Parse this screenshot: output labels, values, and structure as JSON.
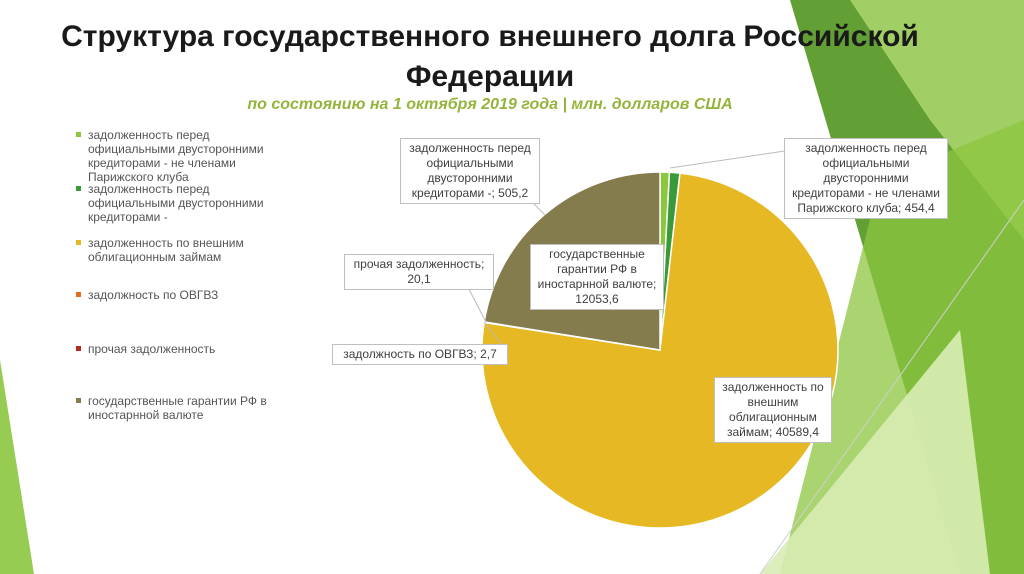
{
  "title": {
    "line1": "Структура государственного внешнего долга Российской",
    "line2": "Федерации",
    "subtitle": "по состоянию на 1 октября 2019 года | млн. долларов США"
  },
  "legend": {
    "items": [
      {
        "label": "задолженность перед официальными двусторонними кредиторами - не членами Парижского клуба",
        "color": "#8dc63f"
      },
      {
        "label": "задолженность перед официальными двусторонними кредиторами -",
        "color": "#3a9a3a"
      },
      {
        "label": "задолженность по внешним облигационным займам",
        "color": "#e6b824"
      },
      {
        "label": "задолжность по ОВГВЗ",
        "color": "#e06c1c"
      },
      {
        "label": "прочая задолженность",
        "color": "#b02d1f"
      },
      {
        "label": "государственные гарантии РФ в иностарнной валюте",
        "color": "#857c4e"
      }
    ]
  },
  "callouts": {
    "paris": "задолженность перед официальными двусторонними кредиторами -; 505,2",
    "nonparis": "задолженность перед официальными двусторонними кредиторами - не членами Парижского клуба; 454,4",
    "other": "прочая задолженность; 20,1",
    "guarantees": "государственные гарантии РФ в иностарнной валюте; 12053,6",
    "ovgvz": "задолжность по ОВГВЗ; 2,7",
    "bonds": "задолженность по внешним облигационным займам; 40589,4"
  },
  "chart_data": {
    "type": "pie",
    "title": "Структура государственного внешнего долга Российской Федерации",
    "subtitle": "по состоянию на 1 октября 2019 года | млн. долларов США",
    "legend_position": "left",
    "slices": [
      {
        "label": "задолженность перед официальными двусторонними кредиторами - не членами Парижского клуба",
        "value": 454.4,
        "color": "#8dc63f"
      },
      {
        "label": "задолженность перед официальными двусторонними кредиторами -",
        "value": 505.2,
        "color": "#3a9a3a"
      },
      {
        "label": "задолженность по внешним облигационным займам",
        "value": 40589.4,
        "color": "#e6b824"
      },
      {
        "label": "задолжность по ОВГВЗ",
        "value": 2.7,
        "color": "#e06c1c"
      },
      {
        "label": "прочая задолженность",
        "value": 20.1,
        "color": "#b02d1f"
      },
      {
        "label": "государственные гарантии РФ в иностарнной валюте",
        "value": 12053.6,
        "color": "#857c4e"
      }
    ]
  }
}
